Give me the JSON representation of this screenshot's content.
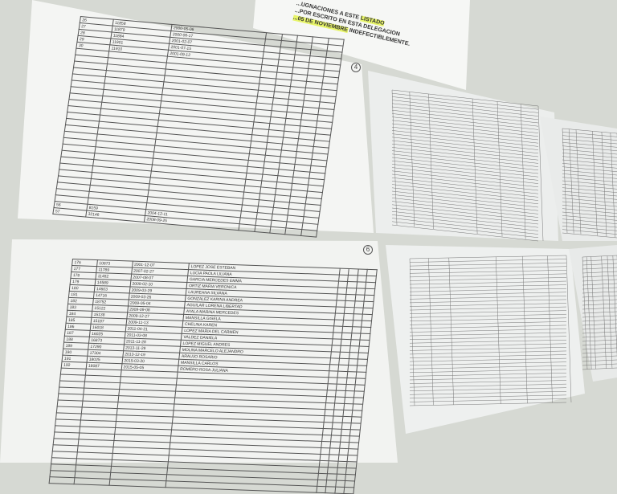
{
  "notice": {
    "line1": "...UGNACIONES A ESTE",
    "highlight1": "LISTADO",
    "line2": "...POR ESCRITO EN ESTA DELEGACION",
    "highlight2": "...05 DE NOVIEMBRE",
    "line3": "INDEFECTIBLEMENTE."
  },
  "sheet_top_left": {
    "page_number": "4",
    "first_rows": [
      [
        "26",
        "11858",
        "2000-05-06"
      ],
      [
        "27",
        "11879",
        "2000-06-17"
      ],
      [
        "28",
        "11884",
        "2001-02-07"
      ],
      [
        "29",
        "11901",
        "2001-07-15"
      ],
      [
        "30",
        "11910",
        "2001-09-12"
      ]
    ],
    "last_rows": [
      [
        "56",
        "8159",
        "2004-12-11"
      ],
      [
        "57",
        "32146",
        "2008-09-25"
      ]
    ]
  },
  "sheet_bottom_left": {
    "page_number": "6",
    "rows": [
      [
        "176",
        "10873",
        "2001-12-07",
        "LOPEZ JOSE ESTEBAN"
      ],
      [
        "177",
        "11789",
        "2007-02-27",
        "LUCIA PAOLA LILIANA"
      ],
      [
        "178",
        "11482",
        "2007-08-07",
        "GARCIA MERCEDES EMMA"
      ],
      [
        "179",
        "14589",
        "2009-02-10",
        "ORTIZ MARIA VERONICA"
      ],
      [
        "180",
        "14603",
        "2009-03-29",
        "LAUREANA SILVANA"
      ],
      [
        "181",
        "14716",
        "2009-03-26",
        "GONZALEZ KARINA ANDREA"
      ],
      [
        "182",
        "18752",
        "2009-05-04",
        "AGUILAR LORENA LIBERTAD"
      ],
      [
        "183",
        "15122",
        "2009-09-08",
        "AYALA MARINA MERCEDES"
      ],
      [
        "184",
        "15138",
        "2009-12-27",
        "MANSILLA GISELA"
      ],
      [
        "185",
        "15187",
        "2009-11-13",
        "CHELINA KAREN"
      ],
      [
        "186",
        "16018",
        "2011-04-21",
        "LOPEZ MARIA DEL CARMEN"
      ],
      [
        "187",
        "16025",
        "2011-03-08",
        "VALDEZ DANIELA"
      ],
      [
        "188",
        "16873",
        "2011-11-28",
        "LOPEZ MIGUEL ANDRES"
      ],
      [
        "189",
        "17290",
        "2013-11-29",
        "MOLINA MARCELO ALEJANDRO"
      ],
      [
        "190",
        "17304",
        "2013-12-19",
        "ARAUJO ROSARIO"
      ],
      [
        "191",
        "18025",
        "2015-03-20",
        "MANSILLA CARLOS"
      ],
      [
        "192",
        "18087",
        "2015-05-05",
        "ROMERO ROSA JULIANA"
      ]
    ]
  }
}
